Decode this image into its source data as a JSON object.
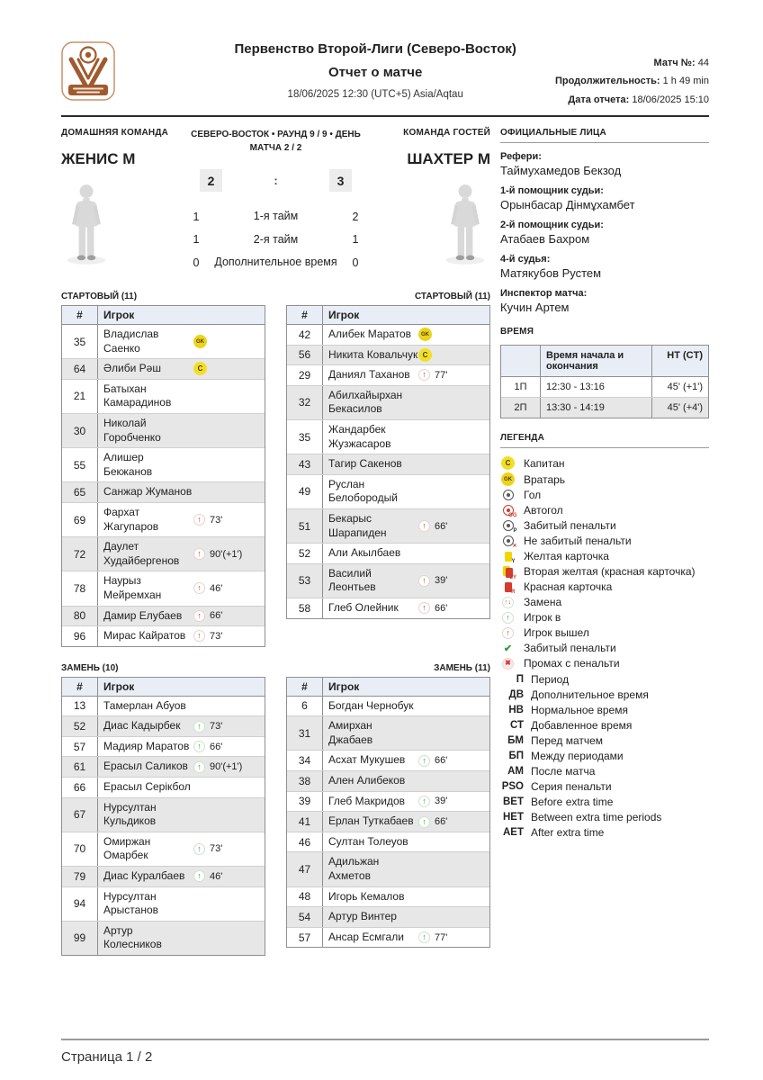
{
  "header": {
    "league": "Первенство Второй-Лиги (Северо-Восток)",
    "report_title": "Отчет о матче",
    "datetime": "18/06/2025 12:30 (UTC+5) Asia/Aqtau",
    "match_no_label": "Матч №:",
    "match_no": "44",
    "duration_label": "Продолжительность:",
    "duration": "1 h 49 min",
    "report_date_label": "Дата отчета:",
    "report_date": "18/06/2025 15:10"
  },
  "scoreboard": {
    "home_label": "ДОМАШНЯЯ КОМАНДА",
    "home_team": "ЖЕНИС М",
    "away_label": "КОМАНДА ГОСТЕЙ",
    "away_team": "ШАХТЕР М",
    "round_info": "СЕВЕРО-ВОСТОК • РАУНД 9 / 9 • ДЕНЬ МАТЧА 2 / 2",
    "home_score": "2",
    "score_separator": ":",
    "away_score": "3",
    "periods": [
      {
        "label": "1-я тайм",
        "home": "1",
        "away": "2"
      },
      {
        "label": "2-я тайм",
        "home": "1",
        "away": "1"
      },
      {
        "label": "Дополнительное время",
        "home": "0",
        "away": "0"
      }
    ]
  },
  "officials": {
    "title": "ОФИЦИАЛЬНЫЕ ЛИЦА",
    "entries": [
      {
        "role": "Рефери:",
        "name": "Таймухамедов Бекзод"
      },
      {
        "role": "1-й помощник судьи:",
        "name": "Орынбасар Дінмұхамбет"
      },
      {
        "role": "2-й помощник судьи:",
        "name": "Атабаев Бахром"
      },
      {
        "role": "4-й судья:",
        "name": "Матякубов Рустем"
      },
      {
        "role": "Инспектор матча:",
        "name": "Кучин Артем"
      }
    ]
  },
  "time_section": {
    "title": "ВРЕМЯ",
    "col_period": "",
    "col_time": "Время начала и окончания",
    "col_ht": "HT (CT)",
    "rows": [
      {
        "period": "1П",
        "time": "12:30 - 13:16",
        "ht": "45' (+1')"
      },
      {
        "period": "2П",
        "time": "13:30 - 14:19",
        "ht": "45' (+4')"
      }
    ]
  },
  "legend": {
    "title": "ЛЕГЕНДА",
    "icon_items": [
      {
        "icon": "captain-badge",
        "label": "Капитан"
      },
      {
        "icon": "goalkeeper-badge",
        "label": "Вратарь"
      },
      {
        "icon": "ball",
        "label": "Гол"
      },
      {
        "icon": "own-goal",
        "label": "Автогол"
      },
      {
        "icon": "penalty-scored-ball",
        "label": "Забитый пенальти"
      },
      {
        "icon": "penalty-missed-ball",
        "label": "Не забитый пенальти"
      },
      {
        "icon": "yellow-card",
        "label": "Желтая карточка"
      },
      {
        "icon": "second-yellow-card",
        "label": "Вторая желтая (красная карточка)"
      },
      {
        "icon": "red-card",
        "label": "Красная карточка"
      },
      {
        "icon": "substitution",
        "label": "Замена"
      },
      {
        "icon": "player-in",
        "label": "Игрок в"
      },
      {
        "icon": "player-out",
        "label": "Игрок вышел"
      },
      {
        "icon": "penalty-scored-check",
        "label": "Забитый пенальти"
      },
      {
        "icon": "penalty-missed-x",
        "label": "Промах с пенальти"
      }
    ],
    "abbr_items": [
      {
        "abbr": "П",
        "label": "Период"
      },
      {
        "abbr": "ДВ",
        "label": "Дополнительное время"
      },
      {
        "abbr": "НВ",
        "label": "Нормальное время"
      },
      {
        "abbr": "СТ",
        "label": "Добавленное время"
      },
      {
        "abbr": "БМ",
        "label": "Перед матчем"
      },
      {
        "abbr": "БП",
        "label": "Между периодами"
      },
      {
        "abbr": "АМ",
        "label": "После матча"
      },
      {
        "abbr": "PSO",
        "label": "Серия пенальти"
      },
      {
        "abbr": "BET",
        "label": "Before extra time"
      },
      {
        "abbr": "HET",
        "label": "Between extra time periods"
      },
      {
        "abbr": "AET",
        "label": "After extra time"
      }
    ]
  },
  "lineups": {
    "number_col": "#",
    "player_col": "Игрок",
    "home_start": {
      "title": "СТАРТОВЫЙ (11)",
      "players": [
        {
          "num": "35",
          "name": "Владислав Саенко",
          "badge": "gk",
          "event": null,
          "minute": ""
        },
        {
          "num": "64",
          "name": "Әлиби Рәш",
          "badge": "c",
          "event": null,
          "minute": ""
        },
        {
          "num": "21",
          "name": "Батыхан Камарадинов",
          "badge": null,
          "event": null,
          "minute": ""
        },
        {
          "num": "30",
          "name": "Николай Горобченко",
          "badge": null,
          "event": null,
          "minute": ""
        },
        {
          "num": "55",
          "name": "Алишер Бекжанов",
          "badge": null,
          "event": null,
          "minute": ""
        },
        {
          "num": "65",
          "name": "Санжар Жуманов",
          "badge": null,
          "event": null,
          "minute": ""
        },
        {
          "num": "69",
          "name": "Фархат Жагупаров",
          "badge": null,
          "event": "out",
          "minute": "73'"
        },
        {
          "num": "72",
          "name": "Даулет Худайбергенов",
          "badge": null,
          "event": "out",
          "minute": "90'(+1')"
        },
        {
          "num": "78",
          "name": "Наурыз Мейремхан",
          "badge": null,
          "event": "out",
          "minute": "46'"
        },
        {
          "num": "80",
          "name": "Дамир Елубаев",
          "badge": null,
          "event": "out",
          "minute": "66'"
        },
        {
          "num": "96",
          "name": "Мирас Кайратов",
          "badge": null,
          "event": "out",
          "minute": "73'"
        }
      ]
    },
    "away_start": {
      "title": "СТАРТОВЫЙ (11)",
      "players": [
        {
          "num": "42",
          "name": "Алибек Маратов",
          "badge": "gk",
          "event": null,
          "minute": ""
        },
        {
          "num": "56",
          "name": "Никита Ковальчук",
          "badge": "c",
          "event": null,
          "minute": ""
        },
        {
          "num": "29",
          "name": "Даниял Таханов",
          "badge": null,
          "event": "out",
          "minute": "77'"
        },
        {
          "num": "32",
          "name": "Абилхайырхан Бекасилов",
          "badge": null,
          "event": null,
          "minute": ""
        },
        {
          "num": "35",
          "name": "Жандарбек Жузжасаров",
          "badge": null,
          "event": null,
          "minute": ""
        },
        {
          "num": "43",
          "name": "Тагир Сакенов",
          "badge": null,
          "event": null,
          "minute": ""
        },
        {
          "num": "49",
          "name": "Руслан Белобородый",
          "badge": null,
          "event": null,
          "minute": ""
        },
        {
          "num": "51",
          "name": "Бекарыс Шарапиден",
          "badge": null,
          "event": "out",
          "minute": "66'"
        },
        {
          "num": "52",
          "name": "Али Акылбаев",
          "badge": null,
          "event": null,
          "minute": ""
        },
        {
          "num": "53",
          "name": "Василий Леонтьев",
          "badge": null,
          "event": "out",
          "minute": "39'"
        },
        {
          "num": "58",
          "name": "Глеб Олейник",
          "badge": null,
          "event": "out",
          "minute": "66'"
        }
      ]
    },
    "home_subs": {
      "title": "ЗАМЕНЬ (10)",
      "players": [
        {
          "num": "13",
          "name": "Тамерлан Абуов",
          "badge": null,
          "event": null,
          "minute": ""
        },
        {
          "num": "52",
          "name": "Диас Кадырбек",
          "badge": null,
          "event": "in",
          "minute": "73'"
        },
        {
          "num": "57",
          "name": "Мадияр Маратов",
          "badge": null,
          "event": "in",
          "minute": "66'"
        },
        {
          "num": "61",
          "name": "Ерасыл Саликов",
          "badge": null,
          "event": "in",
          "minute": "90'(+1')"
        },
        {
          "num": "66",
          "name": "Ерасыл Серікбол",
          "badge": null,
          "event": null,
          "minute": ""
        },
        {
          "num": "67",
          "name": "Нурсултан Кульдиков",
          "badge": null,
          "event": null,
          "minute": ""
        },
        {
          "num": "70",
          "name": "Омиржан Омарбек",
          "badge": null,
          "event": "in",
          "minute": "73'"
        },
        {
          "num": "79",
          "name": "Диас Куралбаев",
          "badge": null,
          "event": "in",
          "minute": "46'"
        },
        {
          "num": "94",
          "name": "Нурсултан Арыстанов",
          "badge": null,
          "event": null,
          "minute": ""
        },
        {
          "num": "99",
          "name": "Артур Колесников",
          "badge": null,
          "event": null,
          "minute": ""
        }
      ]
    },
    "away_subs": {
      "title": "ЗАМЕНЬ (11)",
      "players": [
        {
          "num": "6",
          "name": "Богдан Чернобук",
          "badge": null,
          "event": null,
          "minute": ""
        },
        {
          "num": "31",
          "name": "Амирхан Джабаев",
          "badge": null,
          "event": null,
          "minute": ""
        },
        {
          "num": "34",
          "name": "Асхат Мукушев",
          "badge": null,
          "event": "in",
          "minute": "66'"
        },
        {
          "num": "38",
          "name": "Ален Алибеков",
          "badge": null,
          "event": null,
          "minute": ""
        },
        {
          "num": "39",
          "name": "Глеб Макридов",
          "badge": null,
          "event": "in",
          "minute": "39'"
        },
        {
          "num": "41",
          "name": "Ерлан Туткабаев",
          "badge": null,
          "event": "in",
          "minute": "66'"
        },
        {
          "num": "46",
          "name": "Султан Толеуов",
          "badge": null,
          "event": null,
          "minute": ""
        },
        {
          "num": "47",
          "name": "Адильжан Ахметов",
          "badge": null,
          "event": null,
          "minute": ""
        },
        {
          "num": "48",
          "name": "Игорь Кемалов",
          "badge": null,
          "event": null,
          "minute": ""
        },
        {
          "num": "54",
          "name": "Артур Винтер",
          "badge": null,
          "event": null,
          "minute": ""
        },
        {
          "num": "57",
          "name": "Ансар Есмгали",
          "badge": null,
          "event": "in",
          "minute": "77'"
        }
      ]
    }
  },
  "footer": {
    "page": "Страница 1 / 2"
  },
  "colors": {
    "accent_brown": "#a15a2e",
    "badge_yellow": "#f2df25",
    "out_red": "#cc3b2f",
    "in_green": "#3f9e3f",
    "table_header_blue": "#e9eef6",
    "row_alt_grey": "#e7e7e7"
  }
}
